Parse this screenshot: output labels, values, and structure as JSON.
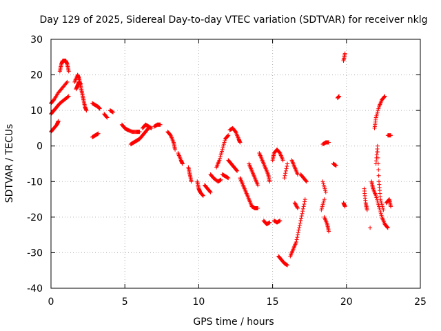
{
  "chart_data": {
    "type": "scatter",
    "title": "Day 129 of 2025, Sidereal Day-to-day VTEC variation (SDTVAR) for receiver nklg",
    "xlabel": "GPS time / hours",
    "ylabel": "SDTVAR / TECUs",
    "xlim": [
      0,
      25
    ],
    "ylim": [
      -40,
      30
    ],
    "xticks": [
      0,
      5,
      10,
      15,
      20,
      25
    ],
    "yticks": [
      -40,
      -30,
      -20,
      -10,
      0,
      10,
      20,
      30
    ],
    "grid": true,
    "marker": "plus",
    "color": "#ff0000",
    "segments": [
      [
        [
          0.0,
          4
        ],
        [
          0.2,
          5
        ],
        [
          0.4,
          6
        ],
        [
          0.5,
          7
        ]
      ],
      [
        [
          0.0,
          9
        ],
        [
          0.2,
          10
        ],
        [
          0.4,
          11
        ],
        [
          0.6,
          12
        ],
        [
          0.9,
          13
        ],
        [
          1.2,
          14
        ]
      ],
      [
        [
          0.0,
          12
        ],
        [
          0.2,
          13
        ],
        [
          0.5,
          15
        ],
        [
          0.8,
          16.5
        ],
        [
          1.1,
          18
        ]
      ],
      [
        [
          0.6,
          21
        ],
        [
          0.7,
          23
        ],
        [
          0.8,
          24
        ],
        [
          1.0,
          24
        ],
        [
          1.1,
          23
        ],
        [
          1.2,
          21
        ]
      ],
      [
        [
          1.6,
          18
        ],
        [
          1.8,
          20
        ],
        [
          1.9,
          19
        ],
        [
          2.0,
          17
        ],
        [
          2.1,
          15
        ],
        [
          2.2,
          13
        ],
        [
          2.3,
          11
        ],
        [
          2.4,
          10
        ]
      ],
      [
        [
          1.7,
          16
        ],
        [
          1.8,
          17
        ],
        [
          1.9,
          18
        ],
        [
          2.0,
          17.5
        ]
      ],
      [
        [
          2.8,
          12
        ],
        [
          3.0,
          11.5
        ],
        [
          3.2,
          11
        ],
        [
          3.3,
          10.5
        ]
      ],
      [
        [
          2.8,
          2.5
        ],
        [
          3.0,
          3
        ],
        [
          3.2,
          3.5
        ]
      ],
      [
        [
          3.6,
          9
        ],
        [
          3.8,
          8
        ]
      ],
      [
        [
          4.0,
          10
        ],
        [
          4.2,
          9.5
        ]
      ],
      [
        [
          4.8,
          6
        ],
        [
          5.0,
          5
        ],
        [
          5.2,
          4.5
        ],
        [
          5.5,
          4
        ],
        [
          5.8,
          4
        ],
        [
          6.0,
          4
        ]
      ],
      [
        [
          5.4,
          0.5
        ],
        [
          5.6,
          1
        ],
        [
          5.8,
          1.5
        ],
        [
          6.0,
          2
        ],
        [
          6.2,
          3
        ],
        [
          6.4,
          4
        ],
        [
          6.6,
          5
        ]
      ],
      [
        [
          6.2,
          5
        ],
        [
          6.4,
          6
        ],
        [
          6.6,
          5.5
        ],
        [
          6.8,
          5
        ]
      ],
      [
        [
          7.0,
          5.5
        ],
        [
          7.2,
          6
        ],
        [
          7.4,
          6
        ]
      ],
      [
        [
          7.9,
          4
        ],
        [
          8.1,
          3
        ],
        [
          8.3,
          1
        ],
        [
          8.4,
          -1
        ]
      ],
      [
        [
          8.6,
          -2
        ],
        [
          8.8,
          -4
        ],
        [
          8.9,
          -5
        ]
      ],
      [
        [
          9.3,
          -6
        ],
        [
          9.4,
          -8
        ],
        [
          9.5,
          -10
        ]
      ],
      [
        [
          9.9,
          -10
        ],
        [
          10.0,
          -12
        ],
        [
          10.1,
          -13
        ],
        [
          10.3,
          -14
        ]
      ],
      [
        [
          10.4,
          -11
        ],
        [
          10.6,
          -12
        ],
        [
          10.8,
          -13
        ]
      ],
      [
        [
          10.8,
          -8
        ],
        [
          11.0,
          -9
        ],
        [
          11.3,
          -10
        ],
        [
          11.5,
          -9.5
        ]
      ],
      [
        [
          11.2,
          -6
        ],
        [
          11.4,
          -4
        ],
        [
          11.6,
          -1
        ],
        [
          11.8,
          2
        ],
        [
          12.0,
          3
        ]
      ],
      [
        [
          11.6,
          -8
        ],
        [
          11.8,
          -8.5
        ],
        [
          12.0,
          -9
        ]
      ],
      [
        [
          12.1,
          4.5
        ],
        [
          12.3,
          5
        ],
        [
          12.5,
          4
        ],
        [
          12.7,
          2
        ],
        [
          12.8,
          1
        ]
      ],
      [
        [
          12.0,
          -4
        ],
        [
          12.2,
          -5
        ],
        [
          12.4,
          -6
        ],
        [
          12.6,
          -7
        ]
      ],
      [
        [
          12.8,
          -9
        ],
        [
          13.0,
          -11
        ],
        [
          13.2,
          -13
        ],
        [
          13.4,
          -15
        ],
        [
          13.6,
          -17
        ]
      ],
      [
        [
          13.4,
          -5
        ],
        [
          13.6,
          -7
        ],
        [
          13.8,
          -9
        ],
        [
          14.0,
          -11
        ]
      ],
      [
        [
          13.6,
          -17
        ],
        [
          13.8,
          -17.5
        ],
        [
          14.0,
          -17.5
        ]
      ],
      [
        [
          14.1,
          -2
        ],
        [
          14.3,
          -4
        ],
        [
          14.5,
          -6
        ],
        [
          14.7,
          -8
        ],
        [
          14.8,
          -10
        ]
      ],
      [
        [
          14.4,
          -21
        ],
        [
          14.6,
          -22
        ],
        [
          14.8,
          -21.5
        ]
      ],
      [
        [
          15.0,
          -4
        ],
        [
          15.1,
          -2
        ],
        [
          15.3,
          -1
        ],
        [
          15.5,
          -2
        ],
        [
          15.7,
          -4
        ]
      ],
      [
        [
          15.1,
          -21
        ],
        [
          15.3,
          -21.5
        ],
        [
          15.5,
          -21
        ]
      ],
      [
        [
          15.4,
          -31
        ],
        [
          15.6,
          -32
        ],
        [
          15.8,
          -33
        ],
        [
          16.0,
          -33.5
        ]
      ],
      [
        [
          15.8,
          -9
        ],
        [
          16.0,
          -5
        ]
      ],
      [
        [
          16.2,
          -31
        ],
        [
          16.4,
          -29
        ],
        [
          16.6,
          -27
        ],
        [
          16.8,
          -23
        ],
        [
          17.0,
          -19
        ],
        [
          17.2,
          -15
        ]
      ],
      [
        [
          16.3,
          -4
        ],
        [
          16.5,
          -6
        ],
        [
          16.7,
          -8
        ]
      ],
      [
        [
          16.5,
          -16
        ],
        [
          16.7,
          -17.5
        ]
      ],
      [
        [
          16.9,
          -8
        ],
        [
          17.1,
          -9
        ],
        [
          17.3,
          -10
        ]
      ],
      [
        [
          18.3,
          -18
        ],
        [
          18.5,
          -15
        ]
      ],
      [
        [
          18.4,
          -10
        ],
        [
          18.6,
          -13
        ]
      ],
      [
        [
          18.5,
          -20
        ],
        [
          18.7,
          -22
        ],
        [
          18.8,
          -24
        ]
      ],
      [
        [
          18.4,
          0.5
        ],
        [
          18.6,
          1
        ],
        [
          18.8,
          1
        ]
      ],
      [
        [
          19.1,
          -5
        ],
        [
          19.3,
          -5.5
        ]
      ],
      [
        [
          19.4,
          13.5
        ],
        [
          19.5,
          14
        ]
      ],
      [
        [
          19.8,
          24
        ],
        [
          19.9,
          26
        ]
      ],
      [
        [
          19.8,
          -16
        ],
        [
          19.9,
          -17
        ]
      ],
      [
        [
          21.2,
          -12
        ],
        [
          21.3,
          -16
        ],
        [
          21.4,
          -18
        ]
      ],
      [
        [
          21.6,
          -23
        ]
      ],
      [
        [
          21.7,
          -10
        ],
        [
          21.8,
          -12
        ],
        [
          22.0,
          -14
        ],
        [
          22.2,
          -17
        ],
        [
          22.4,
          -20
        ],
        [
          22.6,
          -22
        ],
        [
          22.8,
          -23
        ]
      ],
      [
        [
          21.9,
          5
        ],
        [
          22.0,
          8
        ],
        [
          22.2,
          11
        ],
        [
          22.4,
          13
        ],
        [
          22.6,
          14
        ]
      ],
      [
        [
          22.0,
          -5
        ],
        [
          22.1,
          0
        ],
        [
          22.2,
          -10
        ],
        [
          22.3,
          -15
        ],
        [
          22.5,
          -18
        ]
      ],
      [
        [
          22.7,
          -16
        ],
        [
          22.9,
          -15
        ],
        [
          23.0,
          -17
        ]
      ],
      [
        [
          22.8,
          3
        ],
        [
          23.0,
          3
        ]
      ]
    ]
  }
}
